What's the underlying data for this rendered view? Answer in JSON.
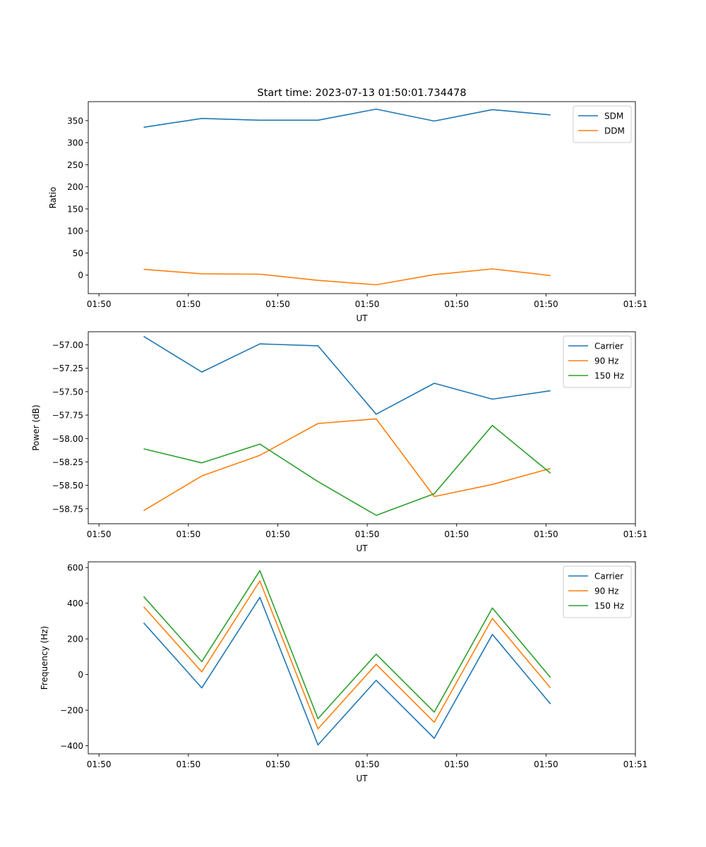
{
  "figure": {
    "title": "Start time: 2023-07-13 01:50:01.734478"
  },
  "colors": {
    "blue": "#1f77b4",
    "orange": "#ff7f0e",
    "green": "#2ca02c"
  },
  "chart_data": [
    {
      "type": "line",
      "title": "Start time: 2023-07-13 01:50:01.734478",
      "xlabel": "UT",
      "ylabel": "Ratio",
      "x_tick_labels": [
        "01:50",
        "01:50",
        "01:50",
        "01:50",
        "01:50",
        "01:50",
        "01:51"
      ],
      "x_tick_positions": [
        0,
        1,
        2,
        3,
        4,
        5,
        6
      ],
      "xlim": [
        -0.12,
        6.0
      ],
      "x": [
        0.5,
        1.15,
        1.8,
        2.45,
        3.1,
        3.75,
        4.4,
        5.05
      ],
      "ylim": [
        -42,
        393
      ],
      "yticks": [
        0,
        50,
        100,
        150,
        200,
        250,
        300,
        350
      ],
      "ytick_labels": [
        "0",
        "50",
        "100",
        "150",
        "200",
        "250",
        "300",
        "350"
      ],
      "legend": "top-right",
      "series": [
        {
          "name": "SDM",
          "color": "blue",
          "values": [
            335,
            355,
            351,
            351,
            376,
            349,
            375,
            363
          ]
        },
        {
          "name": "DDM",
          "color": "orange",
          "values": [
            13,
            3,
            2,
            -12,
            -22,
            1,
            14,
            -1
          ]
        }
      ]
    },
    {
      "type": "line",
      "title": "",
      "xlabel": "UT",
      "ylabel": "Power (dB)",
      "x_tick_labels": [
        "01:50",
        "01:50",
        "01:50",
        "01:50",
        "01:50",
        "01:50",
        "01:51"
      ],
      "x_tick_positions": [
        0,
        1,
        2,
        3,
        4,
        5,
        6
      ],
      "xlim": [
        -0.12,
        6.0
      ],
      "x": [
        0.5,
        1.15,
        1.8,
        2.45,
        3.1,
        3.75,
        4.4,
        5.05
      ],
      "ylim": [
        -58.91,
        -56.86
      ],
      "yticks": [
        -58.75,
        -58.5,
        -58.25,
        -58.0,
        -57.75,
        -57.5,
        -57.25,
        -57.0
      ],
      "ytick_labels": [
        "−58.75",
        "−58.50",
        "−58.25",
        "−58.00",
        "−57.75",
        "−57.50",
        "−57.25",
        "−57.00"
      ],
      "legend": "top-right",
      "series": [
        {
          "name": "Carrier",
          "color": "blue",
          "values": [
            -56.91,
            -57.29,
            -56.99,
            -57.01,
            -57.74,
            -57.41,
            -57.58,
            -57.49
          ]
        },
        {
          "name": "90 Hz",
          "color": "orange",
          "values": [
            -58.77,
            -58.4,
            -58.18,
            -57.84,
            -57.79,
            -58.62,
            -58.49,
            -58.32
          ]
        },
        {
          "name": "150 Hz",
          "color": "green",
          "values": [
            -58.11,
            -58.26,
            -58.06,
            -58.46,
            -58.82,
            -58.59,
            -57.86,
            -58.37
          ]
        }
      ]
    },
    {
      "type": "line",
      "title": "",
      "xlabel": "UT",
      "ylabel": "Frequency (Hz)",
      "x_tick_labels": [
        "01:50",
        "01:50",
        "01:50",
        "01:50",
        "01:50",
        "01:50",
        "01:51"
      ],
      "x_tick_positions": [
        0,
        1,
        2,
        3,
        4,
        5,
        6
      ],
      "xlim": [
        -0.12,
        6.0
      ],
      "x": [
        0.5,
        1.15,
        1.8,
        2.45,
        3.1,
        3.75,
        4.4,
        5.05
      ],
      "ylim": [
        -445,
        632
      ],
      "yticks": [
        -400,
        -200,
        0,
        200,
        400,
        600
      ],
      "ytick_labels": [
        "−400",
        "−200",
        "0",
        "200",
        "400",
        "600"
      ],
      "legend": "top-right",
      "series": [
        {
          "name": "Carrier",
          "color": "blue",
          "values": [
            290,
            -75,
            433,
            -395,
            -33,
            -358,
            225,
            -165
          ]
        },
        {
          "name": "90 Hz",
          "color": "orange",
          "values": [
            380,
            15,
            525,
            -305,
            57,
            -268,
            315,
            -75
          ]
        },
        {
          "name": "150 Hz",
          "color": "green",
          "values": [
            437,
            72,
            583,
            -248,
            114,
            -211,
            373,
            -17
          ]
        }
      ]
    }
  ]
}
